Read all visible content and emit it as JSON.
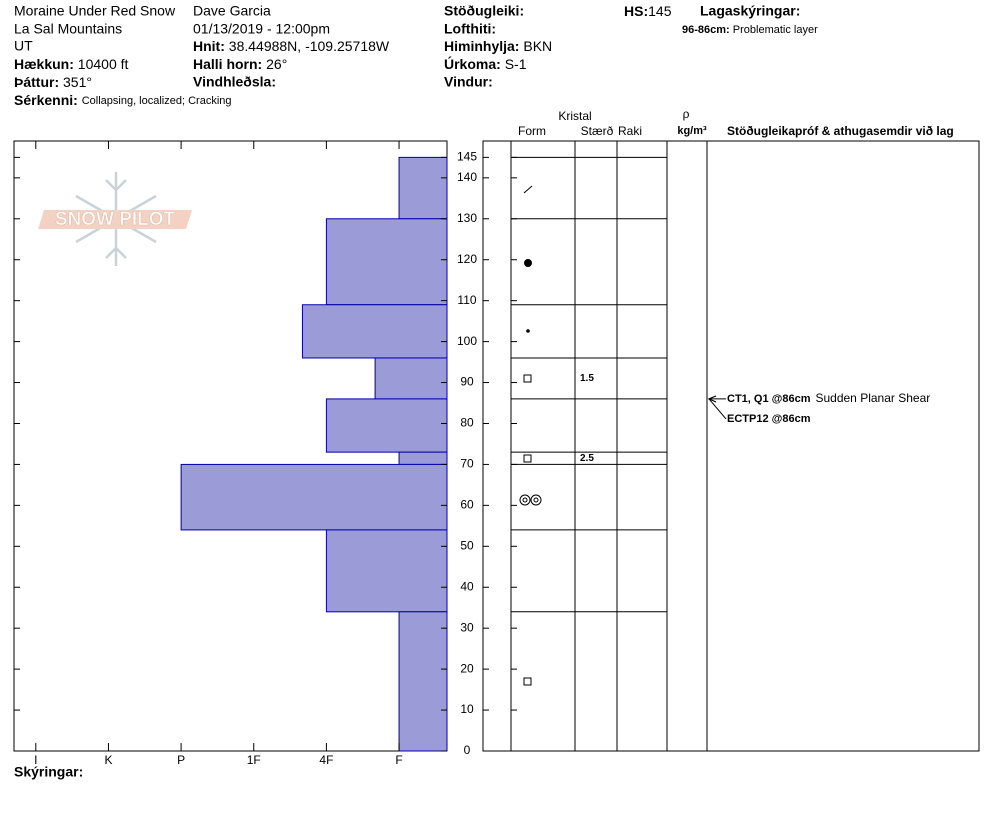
{
  "header": {
    "title": "Moraine Under Red Snow",
    "location": "La Sal Mountains",
    "state": "UT",
    "observer": "Dave Garcia",
    "datetime": "01/13/2019 - 12:00pm",
    "elevation": {
      "label": "Hækkun:",
      "value": "10400 ft"
    },
    "aspect": {
      "label": "Þáttur:",
      "value": "351°"
    },
    "features": {
      "label": "Sérkenni:",
      "value": "Collapsing, localized;  Cracking"
    },
    "coords": {
      "label": "Hnit:",
      "value": "38.44988N, -109.25718W"
    },
    "slope": {
      "label": "Halli horn:",
      "value": "26°"
    },
    "wind_loading": {
      "label": "Vindhleðsla:"
    },
    "stability": {
      "label": "Stöðugleiki:"
    },
    "air_temp": {
      "label": "Lofthiti:"
    },
    "sky": {
      "label": "Himinhylja:",
      "value": "BKN"
    },
    "precip": {
      "label": "Úrkoma:",
      "value": "S-1"
    },
    "wind": {
      "label": "Vindur:"
    },
    "hs": {
      "label": "HS:",
      "value": "145"
    },
    "layer_notes": {
      "label": "Lagaskýringar:",
      "range": "96-86cm:",
      "text": "Problematic layer"
    },
    "logo": "SNOW PILOT"
  },
  "table": {
    "crystal": "Kristal",
    "form": "Form",
    "size": "Stærð",
    "moisture": "Raki",
    "density": "ρ",
    "density_unit": "kg/m³",
    "tests_header": "Stöðugleikapróf & athugasemdir við lag",
    "sizes": [
      null,
      null,
      null,
      1.5,
      null,
      2.5,
      null,
      null,
      null
    ],
    "tests": [
      {
        "label": "CT1, Q1 @86cm",
        "comment": "Sudden Planar Shear",
        "depth": 86
      },
      {
        "label": "ECTP12 @86cm",
        "depth": 86
      }
    ]
  },
  "footer": {
    "notes": "Skýringar:"
  },
  "chart_data": {
    "type": "bar",
    "layer_top": [
      145,
      130,
      109,
      96,
      86,
      73,
      70,
      54,
      34
    ],
    "layer_bottom": [
      130,
      109,
      96,
      86,
      73,
      70,
      54,
      34,
      0
    ],
    "values": [
      1,
      2,
      2.33,
      1.33,
      2,
      1,
      4,
      2,
      1
    ],
    "color": "#9b9bd8",
    "edge_color": "#0000aa",
    "xlim": [
      6.3,
      0.34
    ],
    "xticks": [
      {
        "value": 6,
        "label": "I"
      },
      {
        "value": 5,
        "label": "K"
      },
      {
        "value": 4,
        "label": "P"
      },
      {
        "value": 3,
        "label": "1F"
      },
      {
        "value": 2,
        "label": "4F"
      },
      {
        "value": 1,
        "label": "F"
      }
    ],
    "ylim": [
      0,
      149
    ],
    "yticks": [
      0,
      10,
      20,
      30,
      40,
      50,
      60,
      70,
      80,
      90,
      100,
      110,
      120,
      130,
      140,
      145
    ]
  }
}
